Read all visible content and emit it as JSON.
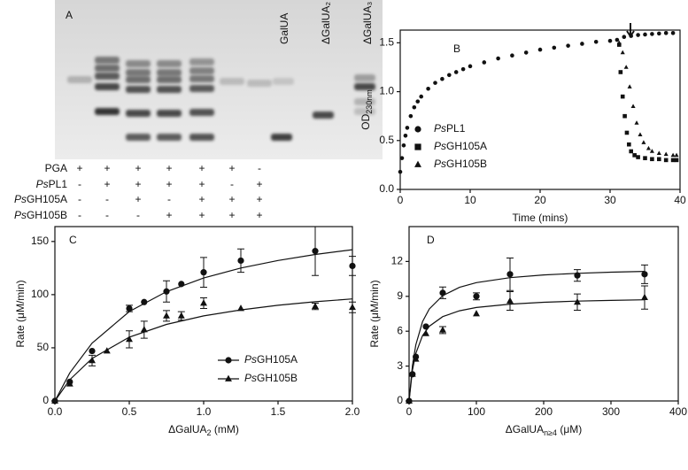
{
  "gel": {
    "label": "A",
    "lane_labels": [
      "GalUA",
      "ΔGalUA₂",
      "ΔGalUA₃"
    ],
    "rows": [
      {
        "name": "PGA",
        "marks": [
          "+",
          "+",
          "+",
          "+",
          "+",
          "+",
          "-"
        ]
      },
      {
        "name": "PsPL1",
        "marks": [
          "-",
          "+",
          "+",
          "+",
          "+",
          "-",
          "+"
        ]
      },
      {
        "name": "PsGH105A",
        "marks": [
          "-",
          "-",
          "+",
          "-",
          "+",
          "+",
          "+"
        ]
      },
      {
        "name": "PsGH105B",
        "marks": [
          "-",
          "-",
          "-",
          "+",
          "+",
          "+",
          "+"
        ]
      }
    ]
  },
  "chart_data": [
    {
      "type": "scatter",
      "panel_label": "B",
      "xlabel": "Time (mins)",
      "ylabel": [
        "OD",
        "230nm"
      ],
      "xlim": [
        0,
        40
      ],
      "xticks": [
        0,
        10,
        20,
        30,
        40
      ],
      "ylim": [
        0,
        1.63
      ],
      "yticks": [
        {
          "value": 0,
          "label": "0.0"
        },
        {
          "value": 0.5,
          "label": "0.5"
        },
        {
          "value": 1,
          "label": "1.0"
        },
        {
          "value": 1.5,
          "label": "1.5"
        }
      ],
      "legend": "lower left",
      "series": [
        {
          "name": "PsPL1",
          "color": "#111111",
          "marker": "circle",
          "x": [
            0,
            0.25,
            0.5,
            0.75,
            1,
            1.5,
            2,
            2.5,
            3,
            4,
            5,
            6,
            7,
            8,
            9,
            10,
            12,
            14,
            16,
            18,
            20,
            22,
            24,
            26,
            28,
            30,
            31,
            32,
            33,
            34,
            35,
            36,
            37,
            38,
            39
          ],
          "values": [
            0.18,
            0.32,
            0.45,
            0.55,
            0.63,
            0.75,
            0.84,
            0.9,
            0.95,
            1.03,
            1.09,
            1.13,
            1.17,
            1.2,
            1.23,
            1.26,
            1.3,
            1.34,
            1.37,
            1.4,
            1.43,
            1.45,
            1.47,
            1.49,
            1.51,
            1.52,
            1.53,
            1.56,
            1.57,
            1.58,
            1.585,
            1.59,
            1.595,
            1.6,
            1.6
          ]
        },
        {
          "name": "PsGH105A",
          "color": "#111111",
          "marker": "square",
          "x": [
            31.3,
            31.5,
            31.8,
            32.1,
            32.4,
            32.7,
            33,
            33.5,
            34,
            35,
            36,
            37,
            38,
            39,
            39.5
          ],
          "values": [
            1.48,
            1.2,
            0.95,
            0.75,
            0.58,
            0.46,
            0.39,
            0.35,
            0.33,
            0.32,
            0.31,
            0.31,
            0.3,
            0.3,
            0.3
          ]
        },
        {
          "name": "PsGH105B",
          "color": "#111111",
          "marker": "triangle",
          "x": [
            31.3,
            31.8,
            32.3,
            32.8,
            33.3,
            33.8,
            34.3,
            34.8,
            35.5,
            36,
            37,
            38,
            39,
            39.5
          ],
          "values": [
            1.5,
            1.4,
            1.25,
            1.05,
            0.85,
            0.68,
            0.56,
            0.48,
            0.42,
            0.39,
            0.37,
            0.36,
            0.35,
            0.35
          ]
        }
      ]
    },
    {
      "type": "scatter",
      "panel_label": "C",
      "xlabel": [
        "ΔGalUA",
        "2",
        " (mM)"
      ],
      "ylabel": "Rate (μM/min)",
      "xlim": [
        0,
        2
      ],
      "xticks": [
        {
          "value": 0,
          "label": "0.0"
        },
        {
          "value": 0.5,
          "label": "0.5"
        },
        {
          "value": 1,
          "label": "1.0"
        },
        {
          "value": 1.5,
          "label": "1.5"
        },
        {
          "value": 2,
          "label": "2.0"
        }
      ],
      "ylim": [
        0,
        164
      ],
      "yticks": [
        0,
        50,
        100,
        150
      ],
      "legend": "lower right",
      "series": [
        {
          "name": "PsGH105A",
          "color": "#111111",
          "marker": "circle",
          "x": [
            0,
            0.1,
            0.25,
            0.5,
            0.6,
            0.75,
            0.85,
            1,
            1.25,
            1.75,
            2
          ],
          "values": [
            0,
            18,
            47,
            87,
            93,
            103,
            110,
            121,
            132,
            141,
            127
          ],
          "errors": [
            null,
            null,
            null,
            3,
            null,
            10,
            null,
            14,
            11,
            23,
            9
          ],
          "curve": {
            "x": [
              0,
              0.1,
              0.25,
              0.5,
              0.75,
              1,
              1.25,
              1.5,
              1.75,
              2
            ],
            "values": [
              0,
              26.4,
              54.4,
              84.1,
              102.8,
              115.6,
              125,
              132.1,
              137.8,
              142.3
            ]
          }
        },
        {
          "name": "PsGH105B",
          "color": "#111111",
          "marker": "triangle",
          "x": [
            0,
            0.1,
            0.25,
            0.35,
            0.5,
            0.6,
            0.75,
            0.85,
            1,
            1.25,
            1.75,
            2
          ],
          "values": [
            0,
            16,
            38,
            47,
            58,
            67,
            80,
            80,
            92,
            87,
            89,
            88
          ],
          "errors": [
            null,
            null,
            5,
            null,
            8,
            8,
            5,
            4,
            5,
            null,
            3,
            5
          ],
          "curve": {
            "x": [
              0,
              0.1,
              0.25,
              0.5,
              0.75,
              1,
              1.25,
              1.5,
              1.75,
              2
            ],
            "values": [
              0,
              20,
              40,
              60,
              72,
              80,
              85.7,
              90,
              93.3,
              96
            ]
          }
        }
      ]
    },
    {
      "type": "scatter",
      "panel_label": "D",
      "xlabel": [
        "ΔGalUA",
        "n≥4",
        " (μM)"
      ],
      "ylabel": "Rate (μM/min)",
      "xlim": [
        0,
        400
      ],
      "xticks": [
        0,
        100,
        200,
        300,
        400
      ],
      "ylim": [
        0,
        15
      ],
      "yticks": [
        0,
        3,
        6,
        9,
        12
      ],
      "series": [
        {
          "name": "PsGH105A",
          "color": "#111111",
          "marker": "circle",
          "x": [
            0,
            5,
            10,
            25,
            50,
            100,
            150,
            250,
            350
          ],
          "values": [
            0,
            2.3,
            3.8,
            6.4,
            9.3,
            9,
            10.9,
            10.8,
            10.9
          ],
          "errors": [
            null,
            null,
            null,
            null,
            0.5,
            0.3,
            1.4,
            0.5,
            0.8
          ],
          "curve": {
            "x": [
              0,
              5,
              10,
              20,
              30,
              50,
              75,
              100,
              150,
              200,
              250,
              300,
              350
            ],
            "values": [
              0,
              3.05,
              4.83,
              6.82,
              7.91,
              9.06,
              9.78,
              10.18,
              10.61,
              10.84,
              10.98,
              11.08,
              11.15
            ]
          }
        },
        {
          "name": "PsGH105B",
          "color": "#111111",
          "marker": "triangle",
          "x": [
            0,
            5,
            10,
            25,
            50,
            100,
            150,
            250,
            350
          ],
          "values": [
            0,
            2.3,
            3.6,
            5.8,
            6.1,
            7.5,
            8.6,
            8.5,
            8.9
          ],
          "errors": [
            null,
            null,
            null,
            null,
            0.3,
            null,
            0.8,
            0.7,
            1
          ],
          "curve": {
            "x": [
              0,
              5,
              10,
              20,
              30,
              50,
              75,
              100,
              150,
              200,
              250,
              300,
              350
            ],
            "values": [
              0,
              2.65,
              4.09,
              5.63,
              6.43,
              7.26,
              7.76,
              8.04,
              8.33,
              8.49,
              8.59,
              8.65,
              8.7
            ]
          }
        }
      ]
    }
  ]
}
